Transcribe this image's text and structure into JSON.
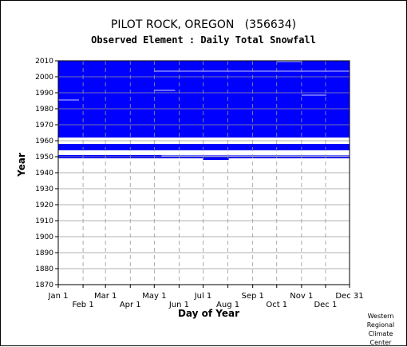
{
  "header": {
    "title": "PILOT ROCK, OREGON   (356634)",
    "subtitle": "Observed Element : Daily Total Snowfall"
  },
  "credit": {
    "line1": "Western",
    "line2": "Regional",
    "line3": "Climate",
    "line4": "Center"
  },
  "colors": {
    "data": "#0000ff",
    "grid": "#999999",
    "axis": "#000000",
    "background": "#ffffff"
  },
  "chart_data": {
    "type": "heatmap",
    "title": "PILOT ROCK, OREGON   (356634)",
    "subtitle": "Observed Element : Daily Total Snowfall",
    "xlabel": "Day of Year",
    "ylabel": "Year",
    "xlim": [
      1,
      365
    ],
    "ylim": [
      1870,
      2010
    ],
    "x_ticks": [
      {
        "label": "Jan 1",
        "day": 1,
        "row": "upper"
      },
      {
        "label": "Feb 1",
        "day": 32,
        "row": "lower"
      },
      {
        "label": "Mar 1",
        "day": 60,
        "row": "upper"
      },
      {
        "label": "Apr 1",
        "day": 91,
        "row": "lower"
      },
      {
        "label": "May 1",
        "day": 121,
        "row": "upper"
      },
      {
        "label": "Jun 1",
        "day": 152,
        "row": "lower"
      },
      {
        "label": "Jul 1",
        "day": 182,
        "row": "upper"
      },
      {
        "label": "Aug 1",
        "day": 213,
        "row": "lower"
      },
      {
        "label": "Sep 1",
        "day": 244,
        "row": "upper"
      },
      {
        "label": "Oct 1",
        "day": 274,
        "row": "lower"
      },
      {
        "label": "Nov 1",
        "day": 305,
        "row": "upper"
      },
      {
        "label": "Dec 1",
        "day": 335,
        "row": "lower"
      },
      {
        "label": "Dec 31",
        "day": 365,
        "row": "upper"
      }
    ],
    "y_ticks": [
      1870,
      1880,
      1890,
      1900,
      1910,
      1920,
      1930,
      1940,
      1950,
      1960,
      1970,
      1980,
      1990,
      2000,
      2010
    ],
    "grid": true,
    "observed_blocks": [
      {
        "year_start": 1962,
        "year_end": 2009,
        "day_start": 1,
        "day_end": 365
      },
      {
        "year_start": 1954,
        "year_end": 1957,
        "day_start": 1,
        "day_end": 365
      },
      {
        "year_start": 1950,
        "year_end": 1950,
        "day_start": 1,
        "day_end": 365
      },
      {
        "year_start": 1949,
        "year_end": 1949,
        "day_start": 1,
        "day_end": 365
      },
      {
        "year_start": 1948,
        "year_end": 1948,
        "day_start": 182,
        "day_end": 213
      }
    ],
    "missing_gaps": [
      {
        "year_start": 1985,
        "year_end": 1985,
        "day_start": 1,
        "day_end": 26
      },
      {
        "year_start": 1991,
        "year_end": 1991,
        "day_start": 121,
        "day_end": 146
      },
      {
        "year_start": 2003,
        "year_end": 2003,
        "day_start": 121,
        "day_end": 365
      },
      {
        "year_start": 2009,
        "year_end": 2009,
        "day_start": 274,
        "day_end": 305
      },
      {
        "year_start": 1988,
        "year_end": 1988,
        "day_start": 305,
        "day_end": 335
      },
      {
        "year_start": 1958,
        "year_end": 1961,
        "day_start": 1,
        "day_end": 365
      },
      {
        "year_start": 1953,
        "year_end": 1953,
        "day_start": 16,
        "day_end": 365
      },
      {
        "year_start": 1951,
        "year_end": 1952,
        "day_start": 1,
        "day_end": 365
      },
      {
        "year_start": 1950,
        "year_end": 1950,
        "day_start": 130,
        "day_end": 365
      }
    ]
  },
  "pixel_scale": {
    "x_origin_day": 1,
    "year_scale": 1
  }
}
